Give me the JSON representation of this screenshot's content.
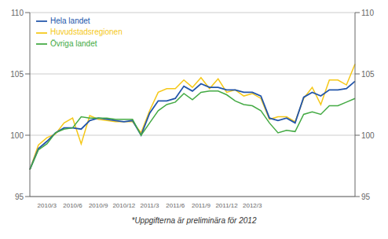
{
  "chart_data": {
    "type": "line",
    "categories": [
      null,
      null,
      "2010/3",
      null,
      null,
      "2010/6",
      null,
      null,
      "2010/9",
      null,
      null,
      "2010/12",
      null,
      null,
      "2011/3",
      null,
      null,
      "2011/6",
      null,
      null,
      "2011/9",
      null,
      null,
      "2011/12",
      null,
      null,
      "2012/3",
      null,
      null,
      null,
      null,
      null,
      null,
      null,
      null,
      null,
      null,
      null,
      null
    ],
    "series": [
      {
        "name": "Huvudstadsregionen",
        "color": "#f5c818",
        "values": [
          97.2,
          99.2,
          99.8,
          100.1,
          101.0,
          101.4,
          99.3,
          101.6,
          101.3,
          101.2,
          101.1,
          101.1,
          101.1,
          100.2,
          102.0,
          103.5,
          103.8,
          103.8,
          104.5,
          103.9,
          104.7,
          103.8,
          104.6,
          103.5,
          103.7,
          103.2,
          103.4,
          103.0,
          101.3,
          101.5,
          101.5,
          101.1,
          103.0,
          103.9,
          102.5,
          104.5,
          104.5,
          104.1,
          105.8
        ]
      },
      {
        "name": "Hela landet",
        "color": "#2255aa",
        "values": [
          97.2,
          98.9,
          99.5,
          100.2,
          100.6,
          100.6,
          100.5,
          101.2,
          101.4,
          101.3,
          101.2,
          101.1,
          101.2,
          100.0,
          101.8,
          102.8,
          102.8,
          103.0,
          104.0,
          103.6,
          104.2,
          103.9,
          103.9,
          103.7,
          103.7,
          103.5,
          103.5,
          103.2,
          101.4,
          101.2,
          101.4,
          101.0,
          103.1,
          103.5,
          103.2,
          103.7,
          103.7,
          103.8,
          104.4
        ]
      },
      {
        "name": "Övriga landet",
        "color": "#44aa44",
        "values": [
          97.2,
          98.8,
          99.3,
          100.2,
          100.5,
          100.6,
          101.5,
          101.4,
          101.4,
          101.4,
          101.3,
          101.3,
          101.3,
          100.0,
          101.0,
          102.0,
          102.5,
          102.7,
          103.4,
          102.9,
          103.5,
          103.6,
          103.6,
          103.3,
          102.8,
          102.5,
          102.4,
          102.0,
          101.0,
          100.2,
          100.4,
          100.3,
          101.7,
          101.9,
          101.7,
          102.4,
          102.4,
          102.7,
          103.0
        ]
      }
    ],
    "ylim": [
      95,
      110
    ],
    "yticks": [
      95,
      100,
      105,
      110
    ],
    "y2lim": [
      95,
      110
    ],
    "y2ticks": [
      95,
      100,
      105,
      110
    ],
    "grid": true,
    "legend": "upper left",
    "annotations": [
      "*Uppgifterna är preliminära för 2012"
    ]
  }
}
